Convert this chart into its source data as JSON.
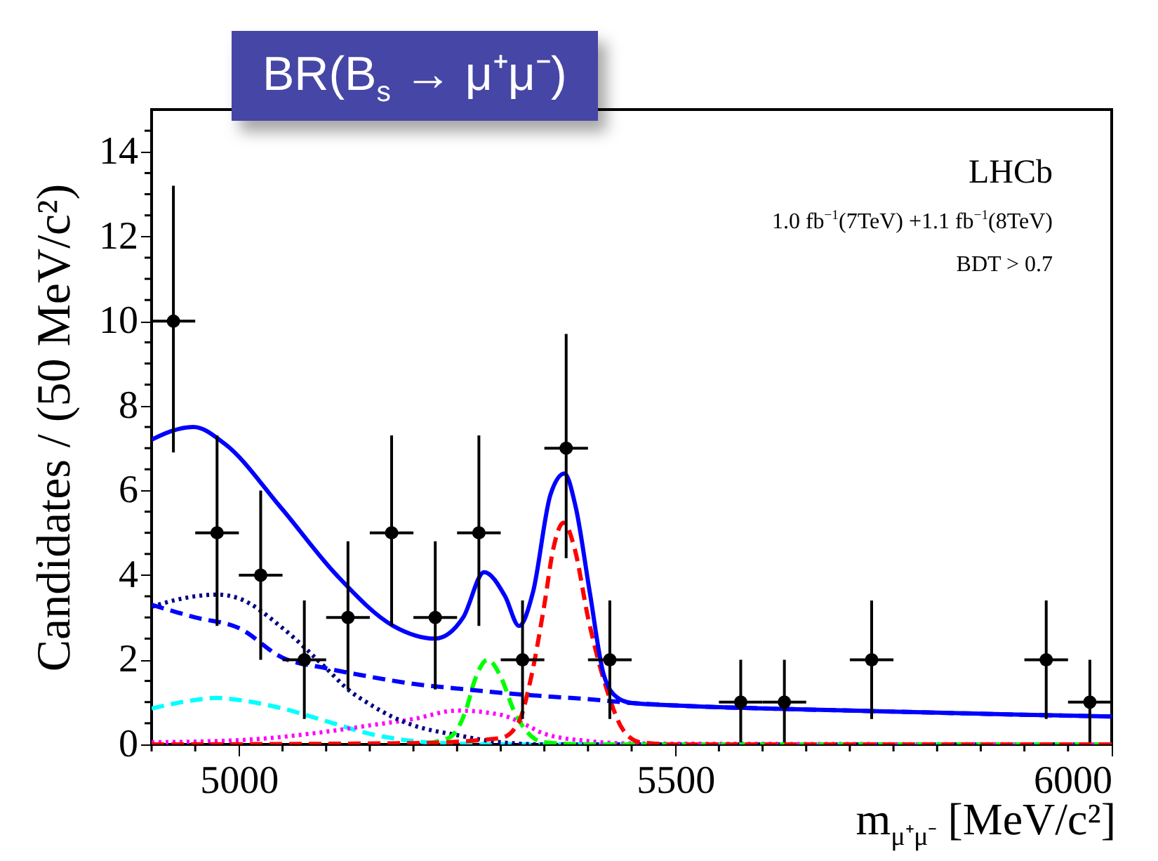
{
  "chart_data": {
    "type": "scatter",
    "title": "BR(B$_{s}$ → μ⁺μ⁻)",
    "xlabel": "m$_{μ⁺μ⁻}$ [MeV/c²]",
    "ylabel": "Candidates / (50 MeV/c²)",
    "annotations": [
      "LHCb",
      "1.0 fb$^{−1}$(7TeV) +1.1 fb$^{−1}$(8TeV)",
      "BDT > 0.7"
    ],
    "xlim": [
      4900,
      6000
    ],
    "ylim": [
      0,
      15
    ],
    "xticks": [
      {
        "value": 4900,
        "label": null
      },
      {
        "value": 4950,
        "label": null
      },
      5000,
      {
        "value": 5050,
        "label": null
      },
      {
        "value": 5100,
        "label": null
      },
      {
        "value": 5150,
        "label": null
      },
      {
        "value": 5200,
        "label": null
      },
      {
        "value": 5250,
        "label": null
      },
      {
        "value": 5300,
        "label": null
      },
      {
        "value": 5350,
        "label": null
      },
      {
        "value": 5400,
        "label": null
      },
      {
        "value": 5450,
        "label": null
      },
      5500,
      {
        "value": 5550,
        "label": null
      },
      {
        "value": 5600,
        "label": null
      },
      {
        "value": 5650,
        "label": null
      },
      {
        "value": 5700,
        "label": null
      },
      {
        "value": 5750,
        "label": null
      },
      {
        "value": 5800,
        "label": null
      },
      {
        "value": 5850,
        "label": null
      },
      {
        "value": 5900,
        "label": null
      },
      {
        "value": 5950,
        "label": null
      },
      6000
    ],
    "yticks": [
      0,
      {
        "value": 0.5,
        "label": null
      },
      {
        "value": 1,
        "label": null
      },
      {
        "value": 1.5,
        "label": null
      },
      2,
      {
        "value": 2.5,
        "label": null
      },
      {
        "value": 3,
        "label": null
      },
      {
        "value": 3.5,
        "label": null
      },
      4,
      {
        "value": 4.5,
        "label": null
      },
      {
        "value": 5,
        "label": null
      },
      {
        "value": 5.5,
        "label": null
      },
      6,
      {
        "value": 6.5,
        "label": null
      },
      {
        "value": 7,
        "label": null
      },
      {
        "value": 7.5,
        "label": null
      },
      8,
      {
        "value": 8.5,
        "label": null
      },
      {
        "value": 9,
        "label": null
      },
      {
        "value": 9.5,
        "label": null
      },
      10,
      {
        "value": 10.5,
        "label": null
      },
      {
        "value": 11,
        "label": null
      },
      {
        "value": 11.5,
        "label": null
      },
      12,
      {
        "value": 12.5,
        "label": null
      },
      {
        "value": 13,
        "label": null
      },
      {
        "value": 13.5,
        "label": null
      },
      14,
      {
        "value": 14.5,
        "label": null
      }
    ],
    "grid": false,
    "series": [
      {
        "type": "line",
        "color": "#00ffff",
        "line_style": "dashed",
        "marker": "none",
        "x": [
          4900,
          4950,
          4975,
          5000,
          5050,
          5100,
          5150,
          5200,
          5250,
          5300,
          6000
        ],
        "values": [
          0.85,
          1.05,
          1.1,
          1.05,
          0.85,
          0.55,
          0.25,
          0.08,
          0.02,
          0,
          0
        ]
      },
      {
        "type": "line",
        "color": "#ff00ff",
        "line_style": "dotted",
        "marker": "none",
        "x": [
          4900,
          5000,
          5100,
          5150,
          5200,
          5250,
          5300,
          5330,
          5350,
          5400,
          5450,
          6000
        ],
        "values": [
          0.05,
          0.1,
          0.3,
          0.45,
          0.6,
          0.8,
          0.7,
          0.45,
          0.25,
          0.08,
          0.02,
          0
        ]
      },
      {
        "type": "line",
        "color": "#000080",
        "line_style": "dotted",
        "marker": "none",
        "x": [
          4900,
          4925,
          4950,
          4975,
          5000,
          5050,
          5100,
          5125,
          5150,
          5175,
          5200,
          5250,
          5300,
          5350,
          6000
        ],
        "values": [
          3.25,
          3.4,
          3.5,
          3.54,
          3.45,
          2.75,
          1.8,
          1.3,
          0.95,
          0.66,
          0.45,
          0.22,
          0.05,
          0,
          0
        ]
      },
      {
        "type": "line",
        "color": "#00ff00",
        "line_style": "dashed",
        "marker": "none",
        "x": [
          4900,
          5200,
          5240,
          5260,
          5270,
          5285,
          5300,
          5315,
          5330,
          5350,
          5400,
          6000
        ],
        "values": [
          0,
          0,
          0.15,
          0.8,
          1.5,
          2.0,
          1.6,
          0.8,
          0.3,
          0.05,
          0,
          0
        ]
      },
      {
        "type": "line",
        "color": "#ff0000",
        "line_style": "dashed",
        "marker": "none",
        "x": [
          4900,
          5200,
          5300,
          5320,
          5335,
          5350,
          5360,
          5372,
          5385,
          5400,
          5420,
          5440,
          5460,
          5500,
          6000
        ],
        "values": [
          0,
          0.03,
          0.15,
          0.5,
          1.6,
          3.3,
          4.6,
          5.24,
          4.6,
          3.0,
          1.4,
          0.35,
          0.05,
          0,
          0
        ]
      },
      {
        "type": "line",
        "color": "#0000ff",
        "line_style": "dashed",
        "marker": "none",
        "x": [
          4900,
          4950,
          5000,
          5050,
          5100,
          5150,
          5200,
          5250,
          5300,
          5350,
          5400,
          5450,
          5500,
          5600,
          5700,
          5800,
          5900,
          6000
        ],
        "values": [
          3.3,
          3.0,
          2.75,
          2.05,
          1.8,
          1.6,
          1.43,
          1.32,
          1.22,
          1.14,
          1.07,
          0.98,
          0.92,
          0.85,
          0.8,
          0.75,
          0.7,
          0.66
        ]
      },
      {
        "type": "line",
        "color": "#0000ff",
        "line_style": "solid",
        "marker": "none",
        "x": [
          4900,
          4925,
          4948,
          4984,
          5048,
          5112,
          5177,
          5225,
          5257,
          5281,
          5305,
          5321,
          5337,
          5357,
          5373,
          5386,
          5402,
          5418,
          5434,
          5450,
          5500,
          5600,
          5700,
          5800,
          5900,
          6000
        ],
        "values": [
          7.2,
          7.42,
          7.5,
          7.1,
          5.6,
          4.0,
          2.8,
          2.5,
          3.0,
          4.07,
          3.5,
          2.8,
          3.6,
          5.9,
          6.4,
          5.6,
          3.6,
          1.65,
          1.1,
          0.98,
          0.92,
          0.85,
          0.8,
          0.75,
          0.7,
          0.66
        ]
      },
      {
        "color": "#000000",
        "marker": "circle",
        "x": [
          4925,
          4975,
          5025,
          5075,
          5125,
          5175,
          5225,
          5275,
          5325,
          5375,
          5425,
          5575,
          5625,
          5725,
          5925,
          5975
        ],
        "values": [
          10,
          5,
          4,
          2,
          3,
          5,
          3,
          5,
          2,
          7,
          2,
          1,
          1,
          2,
          2,
          1
        ],
        "errors": [
          [
            6.9,
            13.2
          ],
          [
            2.8,
            7.3
          ],
          [
            2.0,
            6.0
          ],
          [
            0.6,
            3.4
          ],
          [
            1.3,
            4.8
          ],
          [
            2.8,
            7.3
          ],
          [
            1.3,
            4.8
          ],
          [
            2.8,
            7.3
          ],
          [
            0.6,
            3.4
          ],
          [
            4.4,
            9.7
          ],
          [
            0.6,
            3.4
          ],
          [
            0.05,
            2.0
          ],
          [
            0.05,
            2.0
          ],
          [
            0.6,
            3.4
          ],
          [
            0.6,
            3.4
          ],
          [
            0.05,
            2.0
          ]
        ],
        "xerrors": [
          25,
          25,
          25,
          25,
          25,
          25,
          25,
          25,
          25,
          25,
          25,
          25,
          25,
          25,
          25,
          25
        ]
      }
    ]
  }
}
